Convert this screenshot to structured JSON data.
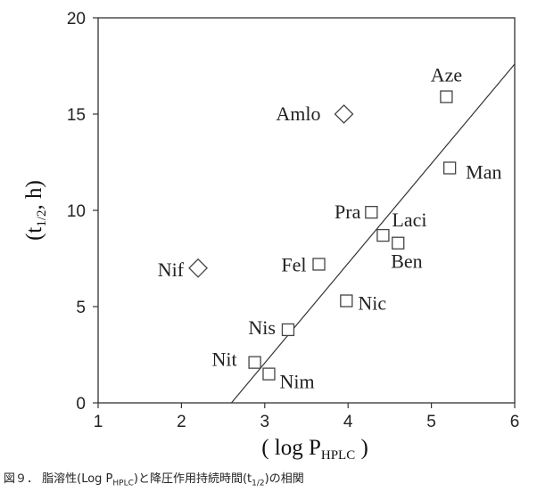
{
  "chart_data": {
    "type": "scatter",
    "xlabel": {
      "main": "( log P",
      "sub": "HPLC",
      "close": " )"
    },
    "ylabel": {
      "open": "(t",
      "sub": "1/2",
      "close": ", h)"
    },
    "xlim": [
      1,
      6
    ],
    "ylim": [
      0,
      20
    ],
    "xticks": [
      "1",
      "2",
      "3",
      "4",
      "5",
      "6"
    ],
    "yticks": [
      "0",
      "5",
      "10",
      "15",
      "20"
    ],
    "grid": false,
    "points": [
      {
        "label": "Aze",
        "x": 5.18,
        "y": 15.9,
        "marker": "square"
      },
      {
        "label": "Amlo",
        "x": 3.95,
        "y": 15.0,
        "marker": "diamond"
      },
      {
        "label": "Man",
        "x": 5.22,
        "y": 12.2,
        "marker": "square"
      },
      {
        "label": "Pra",
        "x": 4.28,
        "y": 9.9,
        "marker": "square"
      },
      {
        "label": "Laci",
        "x": 4.42,
        "y": 8.7,
        "marker": "square"
      },
      {
        "label": "Ben",
        "x": 4.6,
        "y": 8.3,
        "marker": "square"
      },
      {
        "label": "Fel",
        "x": 3.65,
        "y": 7.2,
        "marker": "square"
      },
      {
        "label": "Nif",
        "x": 2.2,
        "y": 7.0,
        "marker": "diamond"
      },
      {
        "label": "Nic",
        "x": 3.98,
        "y": 5.3,
        "marker": "square"
      },
      {
        "label": "Nis",
        "x": 3.28,
        "y": 3.8,
        "marker": "square"
      },
      {
        "label": "Nit",
        "x": 2.88,
        "y": 2.1,
        "marker": "square"
      },
      {
        "label": "Nim",
        "x": 3.05,
        "y": 1.5,
        "marker": "square"
      }
    ],
    "trendline": {
      "x": [
        2.6,
        6.0
      ],
      "y": [
        0,
        17.6
      ]
    }
  },
  "caption": {
    "prefix": "図９．  脂溶性(Log P",
    "sub1": "HPLC",
    "middle": ")と降圧作用持続時間(t",
    "sub2": "1/2",
    "suffix": ")の相関"
  }
}
